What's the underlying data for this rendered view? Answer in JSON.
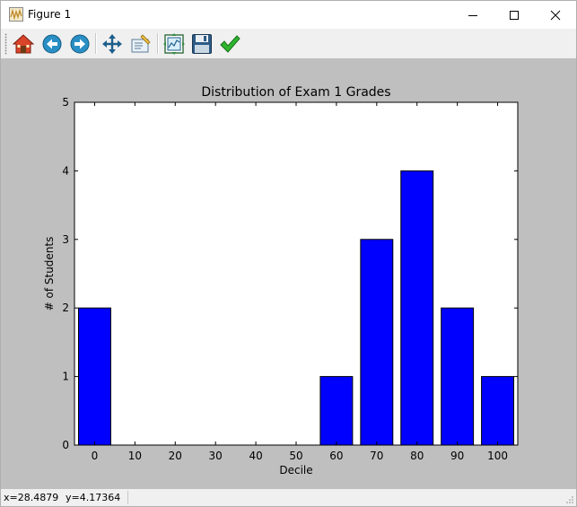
{
  "window": {
    "title": "Figure 1",
    "minimize_icon": "minimize-icon",
    "maximize_icon": "maximize-icon",
    "close_icon": "close-icon"
  },
  "toolbar": {
    "tools": [
      {
        "name": "home-button",
        "icon": "home-icon"
      },
      {
        "name": "back-button",
        "icon": "back-arrow-icon"
      },
      {
        "name": "forward-button",
        "icon": "forward-arrow-icon"
      },
      {
        "name": "pan-button",
        "icon": "move-arrows-icon"
      },
      {
        "name": "zoom-button",
        "icon": "zoom-rect-icon"
      },
      {
        "name": "configure-subplots-button",
        "icon": "subplots-icon"
      },
      {
        "name": "save-button",
        "icon": "floppy-disk-icon"
      },
      {
        "name": "edit-parameters-button",
        "icon": "checkmark-icon"
      }
    ]
  },
  "status": {
    "x": "x=28.4879",
    "y": "y=4.17364"
  },
  "colors": {
    "bar": "#0000ff",
    "canvas": "#bfbfbf",
    "axes_bg": "#ffffff"
  },
  "chart_data": {
    "type": "bar",
    "title": "Distribution of Exam 1 Grades",
    "xlabel": "Decile",
    "ylabel": "# of Students",
    "categories": [
      "0",
      "10",
      "20",
      "30",
      "40",
      "50",
      "60",
      "70",
      "80",
      "90",
      "100"
    ],
    "x": [
      0,
      10,
      20,
      30,
      40,
      50,
      60,
      70,
      80,
      90,
      100
    ],
    "values": [
      2,
      0,
      0,
      0,
      0,
      0,
      1,
      3,
      4,
      2,
      1
    ],
    "yticks": [
      "0",
      "1",
      "2",
      "3",
      "4",
      "5"
    ],
    "ylim": [
      0,
      5
    ],
    "xlim": [
      -5,
      105
    ],
    "grid": false
  }
}
